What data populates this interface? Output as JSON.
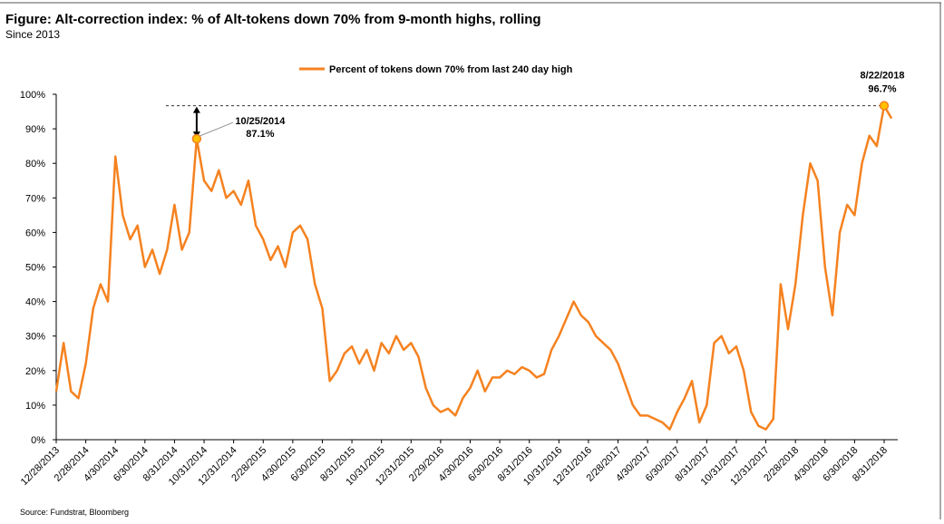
{
  "chart_data": {
    "type": "line",
    "title": "Figure: Alt-correction index: % of Alt-tokens down 70% from 9-month highs, rolling",
    "subtitle": "Since 2013",
    "source": "Source: Fundstrat, Bloomberg",
    "categories": [
      "12/28/2013",
      null,
      null,
      null,
      "2/28/2014",
      null,
      null,
      null,
      "4/30/2014",
      null,
      null,
      null,
      "6/30/2014",
      null,
      null,
      null,
      "8/31/2014",
      null,
      null,
      null,
      "10/31/2014",
      null,
      null,
      null,
      "12/31/2014",
      null,
      null,
      null,
      "2/28/2015",
      null,
      null,
      null,
      "4/30/2015",
      null,
      null,
      null,
      "6/30/2015",
      null,
      null,
      null,
      "8/31/2015",
      null,
      null,
      null,
      "10/31/2015",
      null,
      null,
      null,
      "12/31/2015",
      null,
      null,
      null,
      "2/29/2016",
      null,
      null,
      null,
      "4/30/2016",
      null,
      null,
      null,
      "6/30/2016",
      null,
      null,
      null,
      "8/31/2016",
      null,
      null,
      null,
      "10/31/2016",
      null,
      null,
      null,
      "12/31/2016",
      null,
      null,
      null,
      "2/28/2017",
      null,
      null,
      null,
      "4/30/2017",
      null,
      null,
      null,
      "6/30/2017",
      null,
      null,
      null,
      "8/31/2017",
      null,
      null,
      null,
      "10/31/2017",
      null,
      null,
      null,
      "12/31/2017",
      null,
      null,
      null,
      "2/28/2018",
      null,
      null,
      null,
      "4/30/2018",
      null,
      null,
      null,
      "6/30/2018",
      null,
      null,
      null,
      "8/31/2018",
      null
    ],
    "series": [
      {
        "name": "Percent of tokens down 70% from last 240 day high",
        "color": "#f58220",
        "values": [
          14,
          28,
          14,
          12,
          22,
          38,
          45,
          40,
          82,
          65,
          58,
          62,
          50,
          55,
          48,
          55,
          68,
          55,
          60,
          87.1,
          75,
          72,
          78,
          70,
          72,
          68,
          75,
          62,
          58,
          52,
          56,
          50,
          60,
          62,
          58,
          45,
          38,
          17,
          20,
          25,
          27,
          22,
          26,
          20,
          28,
          25,
          30,
          26,
          28,
          24,
          15,
          10,
          8,
          9,
          7,
          12,
          15,
          20,
          14,
          18,
          18,
          20,
          19,
          21,
          20,
          18,
          19,
          26,
          30,
          35,
          40,
          36,
          34,
          30,
          28,
          26,
          22,
          16,
          10,
          7,
          7,
          6,
          5,
          3,
          8,
          12,
          17,
          5,
          10,
          28,
          30,
          25,
          27,
          20,
          8,
          4,
          3,
          6,
          45,
          32,
          45,
          65,
          80,
          75,
          50,
          36,
          60,
          68,
          65,
          80,
          88,
          85,
          96.7,
          93
        ]
      }
    ],
    "ylim": [
      0,
      100
    ],
    "yticks": [
      {
        "value": 0,
        "label": "0%"
      },
      {
        "value": 10,
        "label": "10%"
      },
      {
        "value": 20,
        "label": "20%"
      },
      {
        "value": 30,
        "label": "30%"
      },
      {
        "value": 40,
        "label": "40%"
      },
      {
        "value": 50,
        "label": "50%"
      },
      {
        "value": 60,
        "label": "60%"
      },
      {
        "value": 70,
        "label": "70%"
      },
      {
        "value": 80,
        "label": "80%"
      },
      {
        "value": 90,
        "label": "90%"
      },
      {
        "value": 100,
        "label": "100%"
      }
    ],
    "annotations": [
      {
        "date": "10/25/2014",
        "value": 87.1,
        "label": "87.1%"
      },
      {
        "date": "8/22/2018",
        "value": 96.7,
        "label": "96.7%"
      }
    ],
    "grid": false,
    "legend": "top"
  }
}
